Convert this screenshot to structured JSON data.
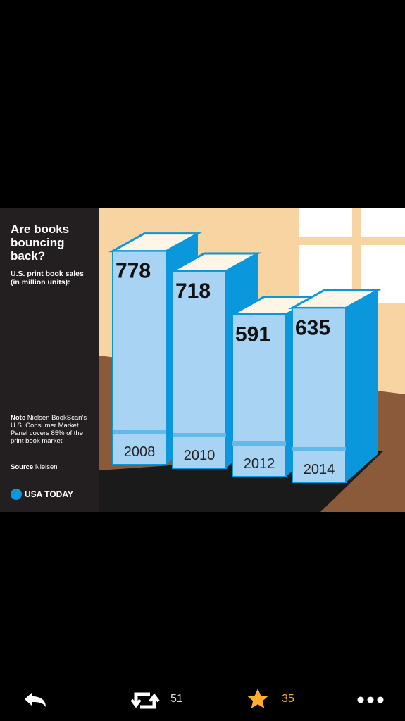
{
  "chart_data": {
    "type": "book-bar",
    "title": "Are books bouncing back?",
    "subtitle": "U.S. print book sales (in million units):",
    "categories": [
      "2008",
      "2010",
      "2012",
      "2014"
    ],
    "values": [
      778,
      718,
      591,
      635
    ],
    "note_label": "Note",
    "note": "Nielsen BookScan’s U.S. Consumer Market Panel covers 85% of the print book market",
    "source_label": "Source",
    "source": "Nielsen",
    "brand": "USA TODAY",
    "color": "#a8d3f2",
    "side_color": "#0a97dc"
  },
  "toolbar": {
    "retweets": "51",
    "favorites": "35"
  }
}
